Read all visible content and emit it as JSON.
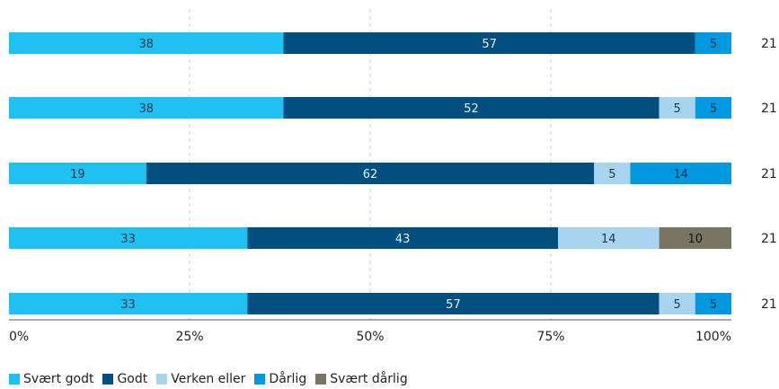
{
  "chart_data": {
    "type": "bar",
    "orientation": "horizontal",
    "stacked": true,
    "title": "",
    "xlabel": "",
    "ylabel": "",
    "xlim": [
      0,
      100
    ],
    "x_ticks": [
      "0%",
      "25%",
      "50%",
      "75%",
      "100%"
    ],
    "grid": "vertical dashed",
    "legend_position": "bottom-left",
    "rows": [
      {
        "n": "21",
        "values": [
          38,
          57,
          0,
          5,
          0
        ]
      },
      {
        "n": "21",
        "values": [
          38,
          52,
          5,
          5,
          0
        ]
      },
      {
        "n": "21",
        "values": [
          19,
          62,
          5,
          14,
          0
        ]
      },
      {
        "n": "21",
        "values": [
          33,
          43,
          14,
          0,
          10
        ]
      },
      {
        "n": "21",
        "values": [
          33,
          57,
          5,
          5,
          0
        ]
      }
    ],
    "series": [
      {
        "name": "Svært godt",
        "color": "#1fc1f3",
        "label_color": "#1b3a4b"
      },
      {
        "name": "Godt",
        "color": "#004f7f",
        "label_color": "#e6f0f7"
      },
      {
        "name": "Verken eller",
        "color": "#a8d4f0",
        "label_color": "#1b3a4b"
      },
      {
        "name": "Dårlig",
        "color": "#0099e1",
        "label_color": "#0d2a3a"
      },
      {
        "name": "Svært dårlig",
        "color": "#7a7562",
        "label_color": "#111111"
      }
    ]
  }
}
